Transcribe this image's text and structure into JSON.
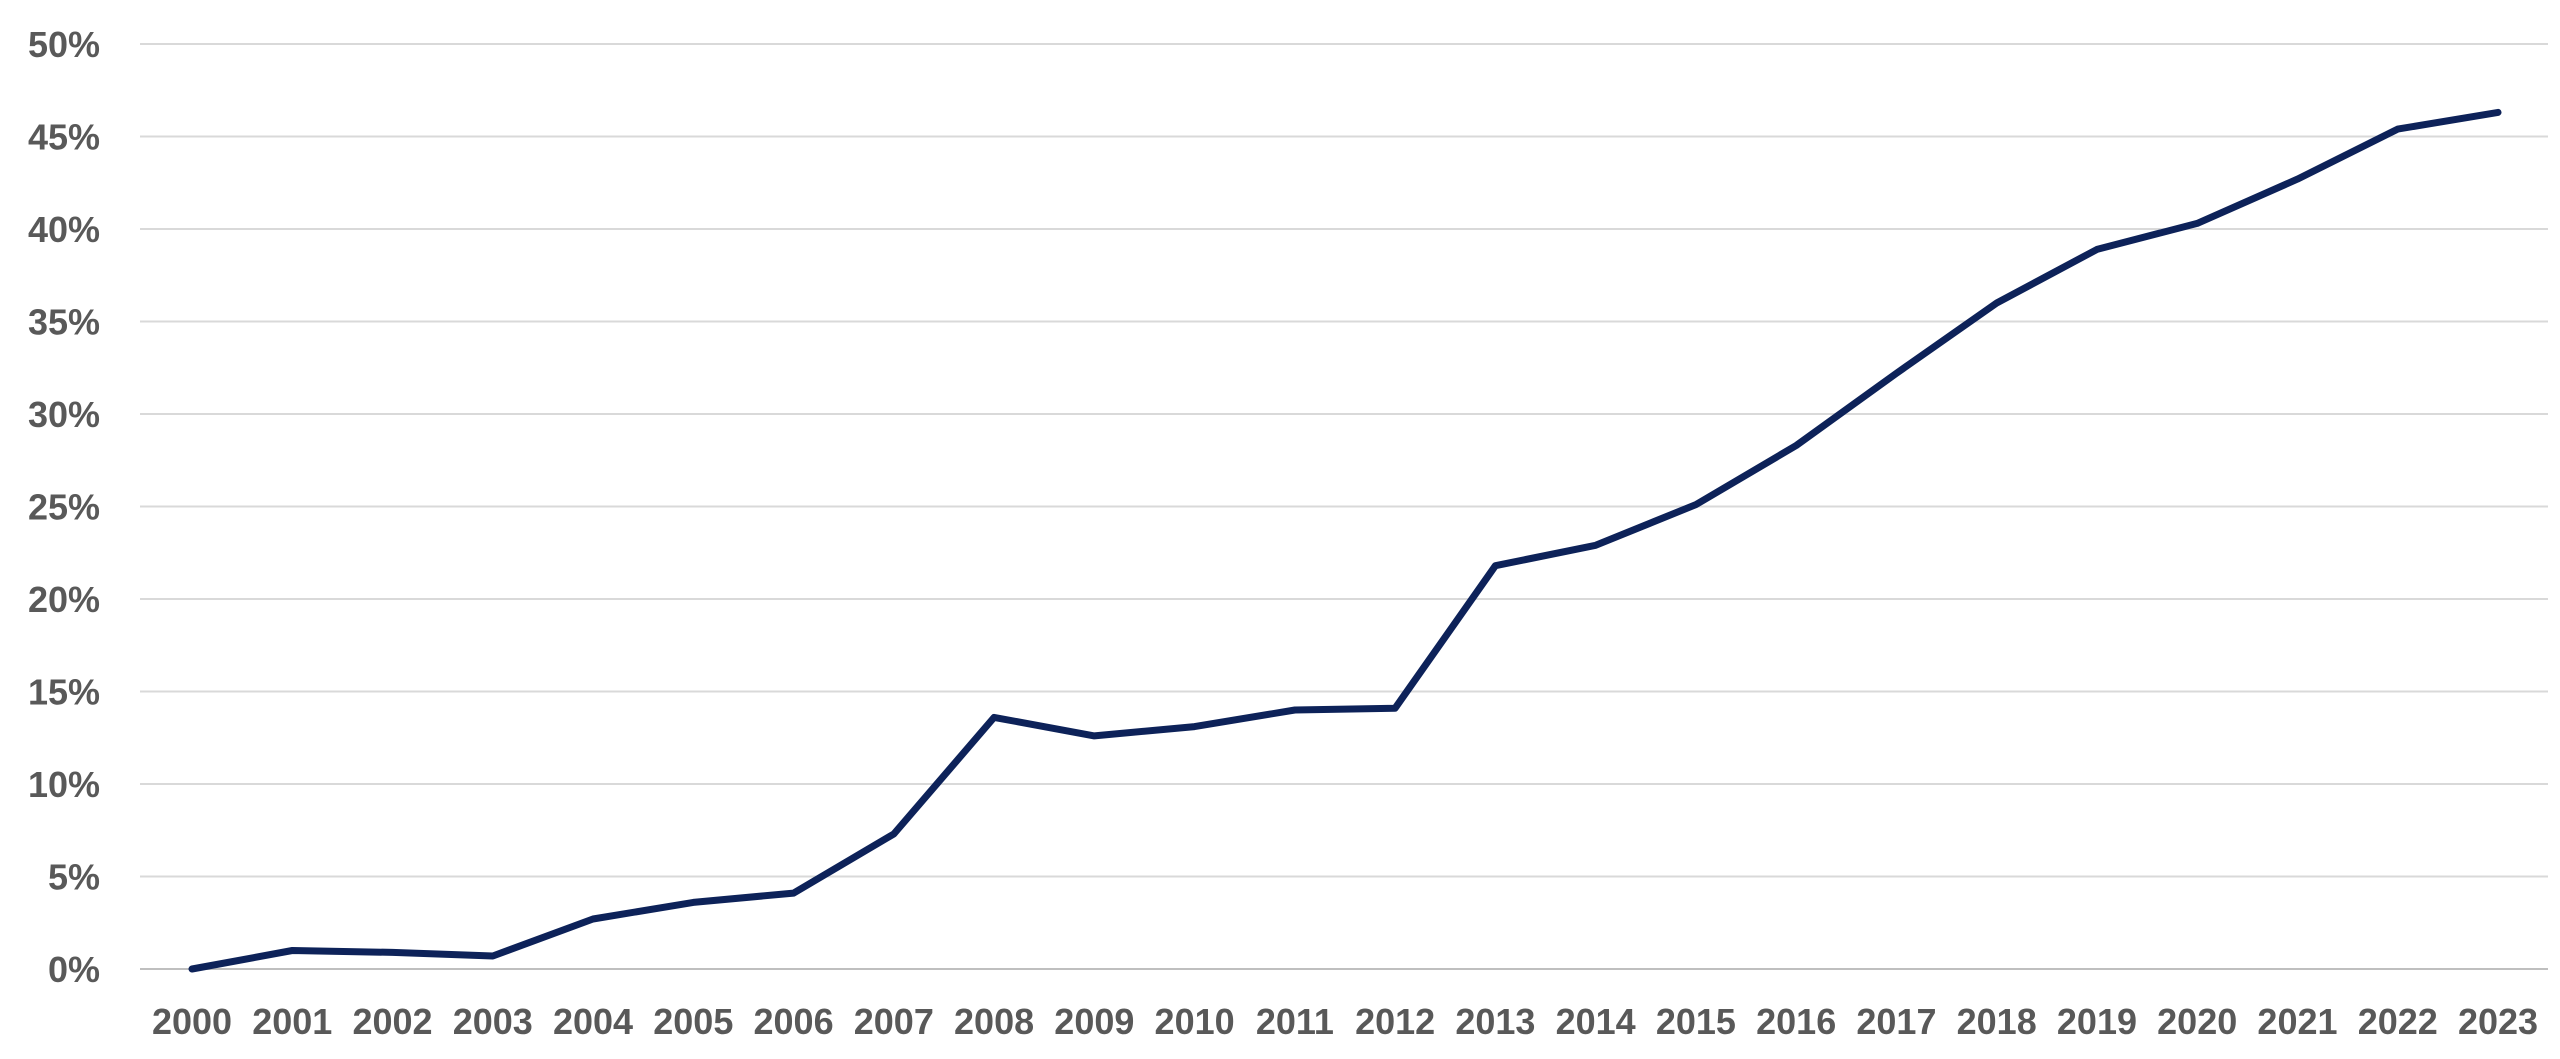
{
  "chart_data": {
    "type": "line",
    "title": "",
    "xlabel": "",
    "ylabel": "",
    "ylim": [
      0,
      0.5
    ],
    "y_ticks": [
      0,
      0.05,
      0.1,
      0.15,
      0.2,
      0.25,
      0.3,
      0.35,
      0.4,
      0.45,
      0.5
    ],
    "y_tick_labels": [
      "0%",
      "5%",
      "10%",
      "15%",
      "20%",
      "25%",
      "30%",
      "35%",
      "40%",
      "45%",
      "50%"
    ],
    "grid": true,
    "legend": "none",
    "categories": [
      "2000",
      "2001",
      "2002",
      "2003",
      "2004",
      "2005",
      "2006",
      "2007",
      "2008",
      "2009",
      "2010",
      "2011",
      "2012",
      "2013",
      "2014",
      "2015",
      "2016",
      "2017",
      "2018",
      "2019",
      "2020",
      "2021",
      "2022",
      "2023"
    ],
    "series": [
      {
        "color": "#0d2259",
        "values": [
          0.0,
          0.01,
          0.009,
          0.007,
          0.027,
          0.036,
          0.041,
          0.073,
          0.136,
          0.126,
          0.131,
          0.14,
          0.141,
          0.218,
          0.229,
          0.251,
          0.283,
          0.322,
          0.36,
          0.389,
          0.403,
          0.427,
          0.454,
          0.463
        ]
      }
    ]
  }
}
